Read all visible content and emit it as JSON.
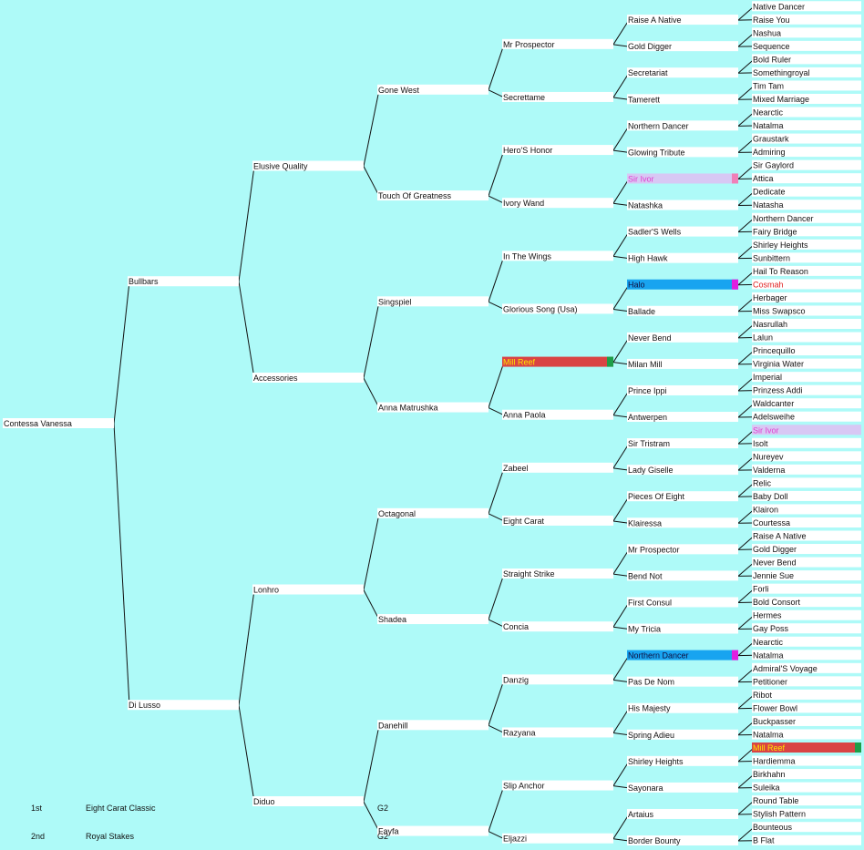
{
  "pedigree": {
    "generations": [
      [
        {
          "name": "Contessa Vanessa"
        }
      ],
      [
        {
          "name": "Bullbars"
        },
        {
          "name": "Di Lusso"
        }
      ],
      [
        {
          "name": "Elusive Quality"
        },
        {
          "name": "Accessories"
        },
        {
          "name": "Lonhro"
        },
        {
          "name": "Diduo"
        }
      ],
      [
        {
          "name": "Gone West"
        },
        {
          "name": "Touch Of Greatness"
        },
        {
          "name": "Singspiel"
        },
        {
          "name": "Anna Matrushka"
        },
        {
          "name": "Octagonal"
        },
        {
          "name": "Shadea"
        },
        {
          "name": "Danehill"
        },
        {
          "name": "Fayfa"
        }
      ],
      [
        {
          "name": "Mr Prospector"
        },
        {
          "name": "Secrettame"
        },
        {
          "name": "Hero'S Honor"
        },
        {
          "name": "Ivory Wand"
        },
        {
          "name": "In The Wings"
        },
        {
          "name": "Glorious Song (Usa)"
        },
        {
          "name": "Mill Reef",
          "bg": "#d94444",
          "color": "#ffe400",
          "marker": "#1e9e48"
        },
        {
          "name": "Anna Paola"
        },
        {
          "name": "Zabeel"
        },
        {
          "name": "Eight Carat"
        },
        {
          "name": "Straight Strike"
        },
        {
          "name": "Concia"
        },
        {
          "name": "Danzig"
        },
        {
          "name": "Razyana"
        },
        {
          "name": "Slip Anchor"
        },
        {
          "name": "Eljazzi"
        }
      ],
      [
        {
          "name": "Raise A Native"
        },
        {
          "name": "Gold Digger"
        },
        {
          "name": "Secretariat"
        },
        {
          "name": "Tamerett"
        },
        {
          "name": "Northern Dancer"
        },
        {
          "name": "Glowing Tribute"
        },
        {
          "name": "Sir Ivor",
          "bg": "#d8c8f4",
          "color": "#e040d0",
          "marker": "#f080b8"
        },
        {
          "name": "Natashka"
        },
        {
          "name": "Sadler'S Wells"
        },
        {
          "name": "High Hawk"
        },
        {
          "name": "Halo",
          "bg": "#18a4f0",
          "color": "#101040",
          "marker": "#e020e0"
        },
        {
          "name": "Ballade"
        },
        {
          "name": "Never Bend"
        },
        {
          "name": "Milan Mill"
        },
        {
          "name": "Prince Ippi"
        },
        {
          "name": "Antwerpen"
        },
        {
          "name": "Sir Tristram"
        },
        {
          "name": "Lady Giselle"
        },
        {
          "name": "Pieces Of Eight"
        },
        {
          "name": "Klairessa"
        },
        {
          "name": "Mr Prospector"
        },
        {
          "name": "Bend Not"
        },
        {
          "name": "First Consul"
        },
        {
          "name": "My Tricia"
        },
        {
          "name": "Northern Dancer",
          "bg": "#18a4f0",
          "color": "#101040",
          "marker": "#e020e0"
        },
        {
          "name": "Pas De Nom"
        },
        {
          "name": "His Majesty"
        },
        {
          "name": "Spring Adieu"
        },
        {
          "name": "Shirley Heights"
        },
        {
          "name": "Sayonara"
        },
        {
          "name": "Artaius"
        },
        {
          "name": "Border Bounty"
        }
      ],
      [
        {
          "name": "Native Dancer"
        },
        {
          "name": "Raise You"
        },
        {
          "name": "Nashua"
        },
        {
          "name": "Sequence"
        },
        {
          "name": "Bold Ruler"
        },
        {
          "name": "Somethingroyal"
        },
        {
          "name": "Tim Tam"
        },
        {
          "name": "Mixed Marriage"
        },
        {
          "name": "Nearctic"
        },
        {
          "name": "Natalma"
        },
        {
          "name": "Graustark"
        },
        {
          "name": "Admiring"
        },
        {
          "name": "Sir Gaylord"
        },
        {
          "name": "Attica"
        },
        {
          "name": "Dedicate"
        },
        {
          "name": "Natasha"
        },
        {
          "name": "Northern Dancer"
        },
        {
          "name": "Fairy Bridge"
        },
        {
          "name": "Shirley Heights"
        },
        {
          "name": "Sunbittern"
        },
        {
          "name": "Hail To Reason"
        },
        {
          "name": "Cosmah",
          "color": "#e02020"
        },
        {
          "name": "Herbager"
        },
        {
          "name": "Miss Swapsco"
        },
        {
          "name": "Nasrullah"
        },
        {
          "name": "Lalun"
        },
        {
          "name": "Princequillo"
        },
        {
          "name": "Virginia Water"
        },
        {
          "name": "Imperial"
        },
        {
          "name": "Prinzess Addi"
        },
        {
          "name": "Waldcanter"
        },
        {
          "name": "Adelsweihe"
        },
        {
          "name": "Sir Ivor",
          "bg": "#d8c8f4",
          "color": "#e040d0",
          "marker": "#d8c8f4"
        },
        {
          "name": "Isolt"
        },
        {
          "name": "Nureyev"
        },
        {
          "name": "Valderna"
        },
        {
          "name": "Relic"
        },
        {
          "name": "Baby Doll"
        },
        {
          "name": "Klairon"
        },
        {
          "name": "Courtessa"
        },
        {
          "name": "Raise A Native"
        },
        {
          "name": "Gold Digger"
        },
        {
          "name": "Never Bend"
        },
        {
          "name": "Jennie Sue"
        },
        {
          "name": "Forli"
        },
        {
          "name": "Bold Consort"
        },
        {
          "name": "Hermes"
        },
        {
          "name": "Gay Poss"
        },
        {
          "name": "Nearctic"
        },
        {
          "name": "Natalma"
        },
        {
          "name": "Admiral'S Voyage"
        },
        {
          "name": "Petitioner"
        },
        {
          "name": "Ribot"
        },
        {
          "name": "Flower Bowl"
        },
        {
          "name": "Buckpasser"
        },
        {
          "name": "Natalma"
        },
        {
          "name": "Mill Reef",
          "bg": "#d94444",
          "color": "#ffe400",
          "marker": "#1e9e48"
        },
        {
          "name": "Hardiemma"
        },
        {
          "name": "Birkhahn"
        },
        {
          "name": "Suleika"
        },
        {
          "name": "Round Table"
        },
        {
          "name": "Stylish Pattern"
        },
        {
          "name": "Bounteous"
        },
        {
          "name": "B Flat"
        }
      ]
    ]
  },
  "results": [
    {
      "place": "1st",
      "race": "Eight Carat Classic",
      "grade": "G2"
    },
    {
      "place": "2nd",
      "race": "Royal Stakes",
      "grade": "G2"
    }
  ]
}
